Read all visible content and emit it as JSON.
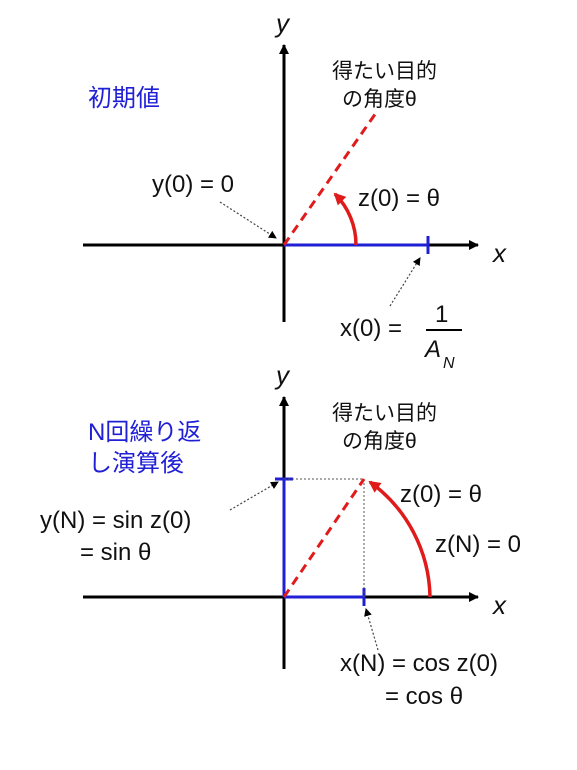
{
  "colors": {
    "axis": "#000000",
    "blue": "#1f1fd6",
    "red": "#e01b1b",
    "dotted": "#444444"
  },
  "panel_top": {
    "heading": "初期値",
    "axis_x": "x",
    "axis_y": "y",
    "target_line1": "得たい目的",
    "target_line2": "の角度θ",
    "label_y0": "y(0) = 0",
    "label_z0": "z(0) = θ",
    "label_x0_left": "x(0) = ",
    "label_x0_num": "1",
    "label_x0_den": "A",
    "label_x0_sub": "N"
  },
  "panel_bottom": {
    "heading_line1": "N回繰り返",
    "heading_line2": "し演算後",
    "axis_x": "x",
    "axis_y": "y",
    "target_line1": "得たい目的",
    "target_line2": "の角度θ",
    "label_yN_line1": "y(N) = sin z(0)",
    "label_yN_line2": "=  sin θ",
    "label_z0": "z(0) = θ",
    "label_zN": "z(N) = 0",
    "label_xN_line1": "x(N) = cos z(0)",
    "label_xN_line2": "=  cos θ"
  }
}
